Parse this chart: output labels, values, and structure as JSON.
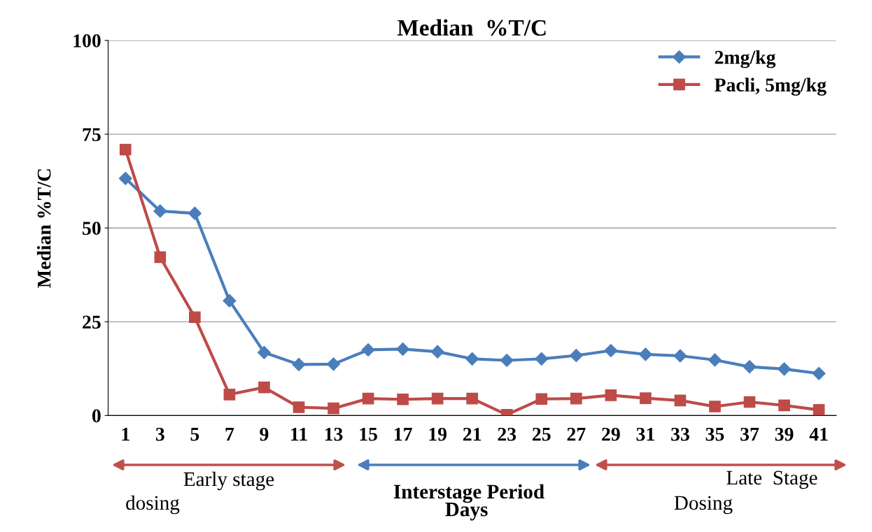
{
  "chart_data": {
    "type": "line",
    "title": "Median  %T/C",
    "ylabel": "Median %T/C",
    "xlabel": "Days",
    "categories": [
      "1",
      "3",
      "5",
      "7",
      "9",
      "11",
      "13",
      "15",
      "17",
      "19",
      "21",
      "23",
      "25",
      "27",
      "29",
      "31",
      "33",
      "35",
      "37",
      "39",
      "41"
    ],
    "series": [
      {
        "name": "2mg/kg",
        "color": "#4a7ebb",
        "marker": "diamond",
        "values": [
          63.2,
          54.5,
          53.9,
          30.6,
          16.8,
          13.6,
          13.7,
          17.5,
          17.7,
          17.0,
          15.1,
          14.7,
          15.1,
          16.0,
          17.3,
          16.3,
          15.9,
          14.8,
          13.0,
          12.4,
          11.2
        ]
      },
      {
        "name": "Pacli, 5mg/kg",
        "color": "#be4b48",
        "marker": "square",
        "values": [
          70.9,
          42.2,
          26.2,
          5.6,
          7.5,
          2.2,
          1.9,
          4.5,
          4.3,
          4.5,
          4.5,
          0.2,
          4.4,
          4.5,
          5.4,
          4.6,
          4.0,
          2.4,
          3.6,
          2.7,
          1.5
        ]
      }
    ],
    "ylim": [
      0,
      100
    ],
    "yticks": [
      0,
      25,
      50,
      75,
      100
    ],
    "grid": "y",
    "legend": "top right",
    "line_style": "solid",
    "annotations": [
      "Early stage\ndosing",
      "Interstage Period",
      "Late  Stage\nDosing"
    ]
  }
}
